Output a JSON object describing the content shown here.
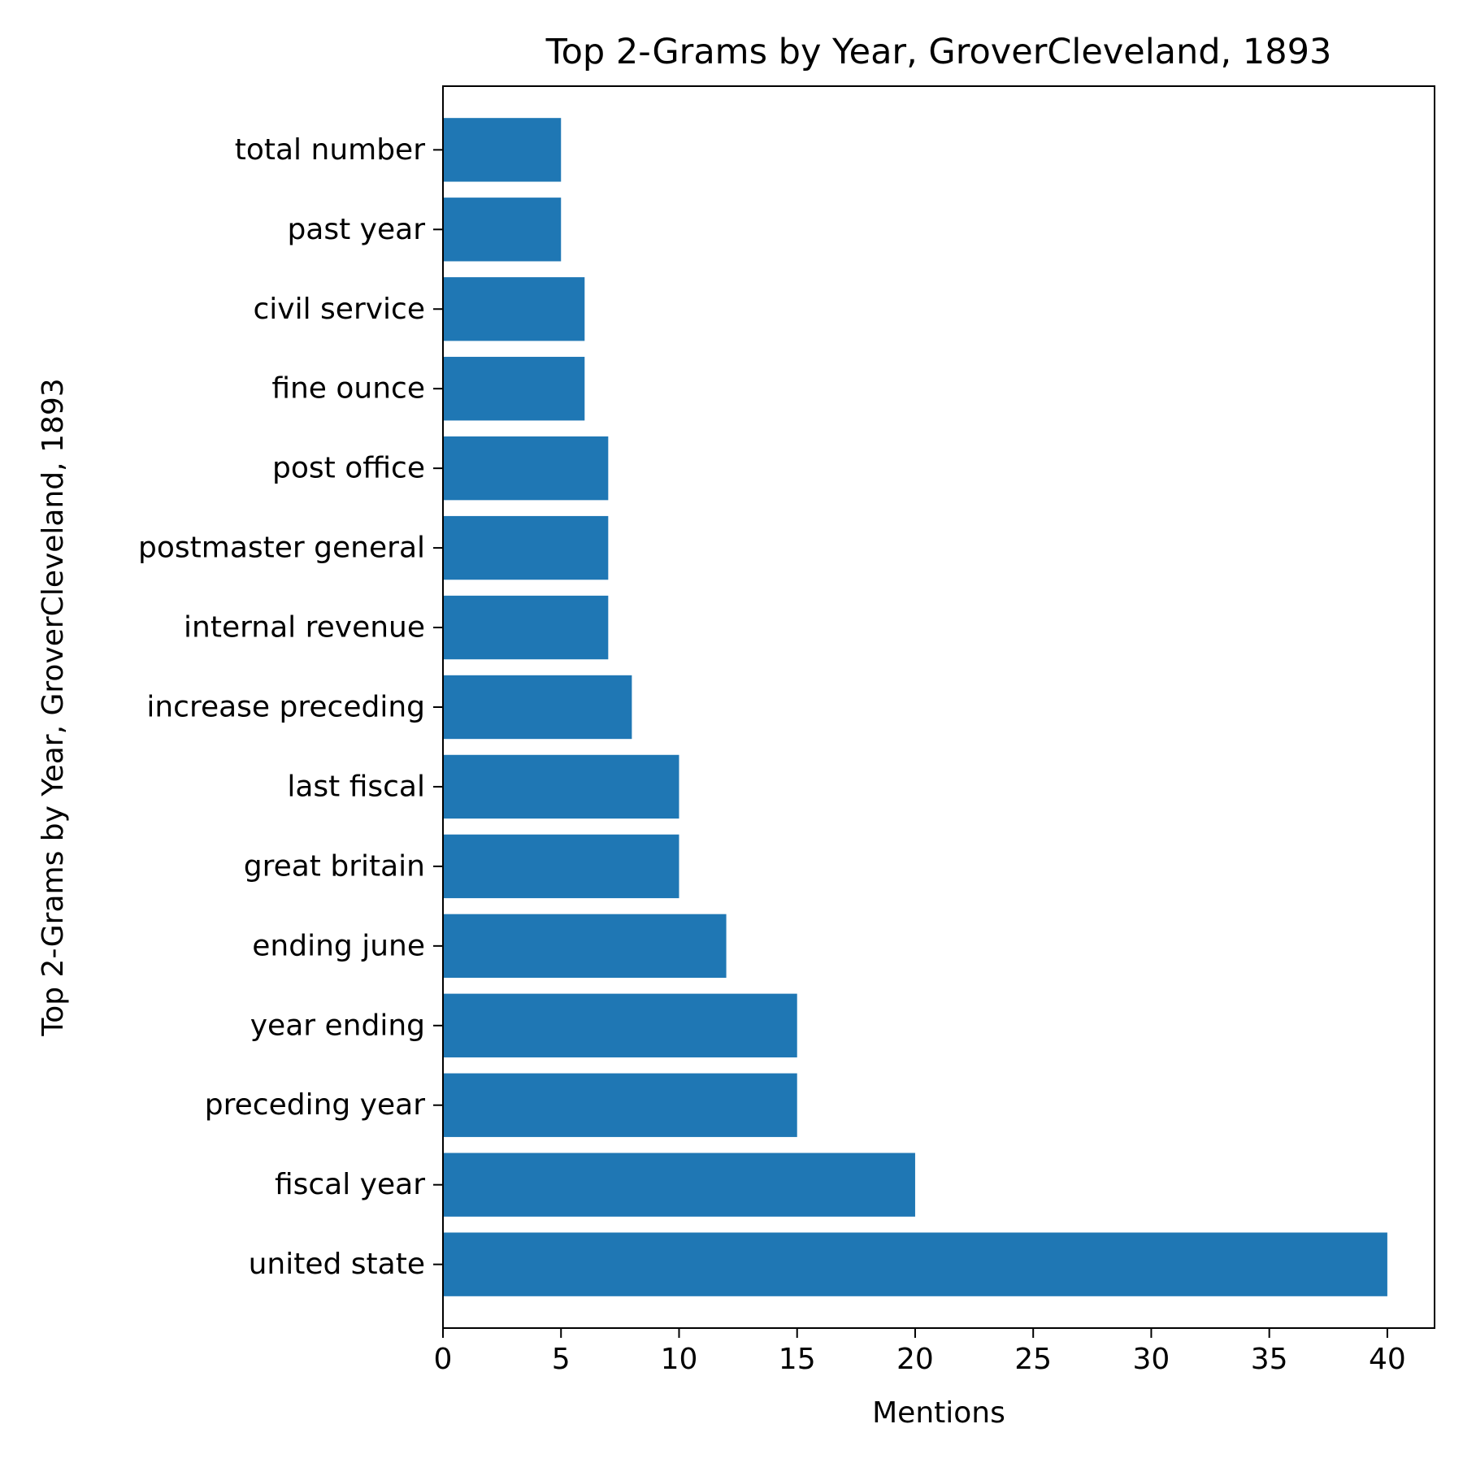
{
  "colors": {
    "bar": "#1f77b4",
    "frame": "#000000",
    "text": "#000000",
    "background": "#ffffff"
  },
  "chart_data": {
    "type": "bar",
    "orientation": "horizontal",
    "title": "Top 2-Grams by Year, GroverCleveland, 1893",
    "xlabel": "Mentions",
    "ylabel": "Top 2-Grams by Year, GroverCleveland, 1893",
    "categories": [
      "united state",
      "fiscal year",
      "preceding year",
      "year ending",
      "ending june",
      "great britain",
      "last fiscal",
      "increase preceding",
      "internal revenue",
      "postmaster general",
      "post office",
      "fine ounce",
      "civil service",
      "past year",
      "total number"
    ],
    "values": [
      40,
      20,
      15,
      15,
      12,
      10,
      10,
      8,
      7,
      7,
      7,
      6,
      6,
      5,
      5
    ],
    "xlim": [
      0,
      42
    ],
    "xticks": [
      0,
      5,
      10,
      15,
      20,
      25,
      30,
      35,
      40
    ],
    "grid": false,
    "legend": "none"
  }
}
